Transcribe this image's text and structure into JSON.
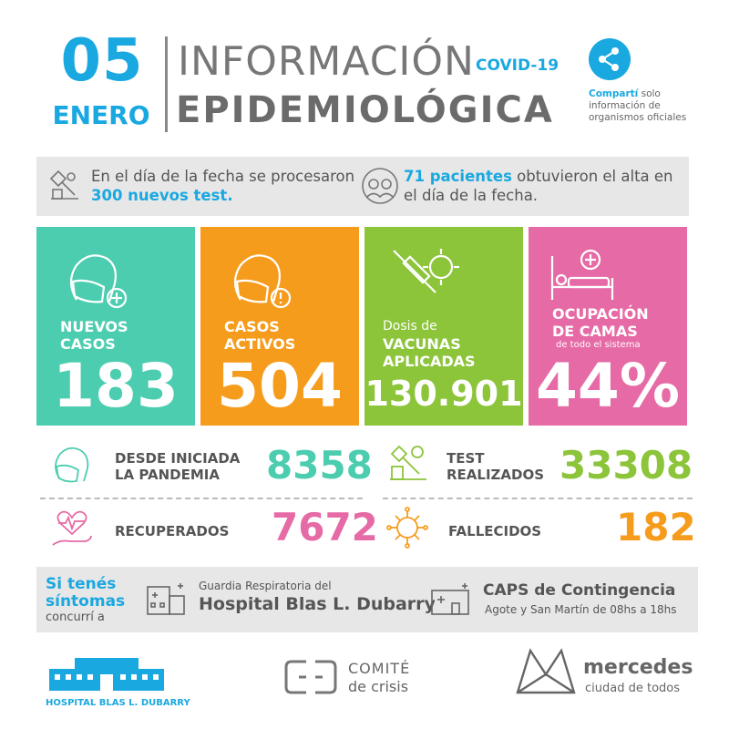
{
  "header": {
    "day": "05",
    "month": "ENERO",
    "title_line1": "INFORMACIÓN",
    "covid_tag": "COVID-19",
    "title_line2": "EPIDEMIOLÓGICA",
    "share_bold": "Compartí",
    "share_rest": " solo información de organismos oficiales"
  },
  "infobar": {
    "tests_text_a": "En el día de la fecha se procesaron ",
    "tests_highlight": "300 nuevos test.",
    "alta_highlight": "71 pacientes",
    "alta_text_b": " obtuvieron el alta en el día de la fecha."
  },
  "cards": {
    "nuevos": {
      "label_1": "NUEVOS",
      "label_2": "CASOS",
      "value": "183"
    },
    "activos": {
      "label_1": "CASOS",
      "label_2": "ACTIVOS",
      "value": "504"
    },
    "vacunas": {
      "label_pre": "Dosis de",
      "label_1": "VACUNAS",
      "label_2": "APLICADAS",
      "value": "130.901"
    },
    "camas": {
      "label_1": "OCUPACIÓN",
      "label_2": "DE CAMAS",
      "label_sub": "de todo el sistema",
      "value": "44%"
    }
  },
  "stats": {
    "pandemia": {
      "label_1": "DESDE INICIADA",
      "label_2": "LA PANDEMIA",
      "value": "8358"
    },
    "test": {
      "label_1": "TEST",
      "label_2": "REALIZADOS",
      "value": "33308"
    },
    "recuperados": {
      "label": "RECUPERADOS",
      "value": "7672"
    },
    "fallecidos": {
      "label": "FALLECIDOS",
      "value": "182"
    }
  },
  "sintomas": {
    "line1": "Si tenés",
    "line2": "síntomas",
    "line3": "concurrí a",
    "guardia_small": "Guardia Respiratoria del",
    "guardia_big": "Hospital Blas L. Dubarry",
    "caps_big": "CAPS de Contingencia",
    "caps_small": "Agote y San Martín de 08hs a 18hs"
  },
  "footer": {
    "hospital": "HOSPITAL BLAS L. DUBARRY",
    "comite_1": "COMITÉ",
    "comite_2": "de crisis",
    "mercedes": "mercedes",
    "mercedes_sub": "ciudad de todos"
  },
  "colors": {
    "blue": "#1aa8e0",
    "teal": "#4ccdb0",
    "orange": "#f69c1d",
    "lime": "#8cc43a",
    "pink": "#e66aa5"
  }
}
